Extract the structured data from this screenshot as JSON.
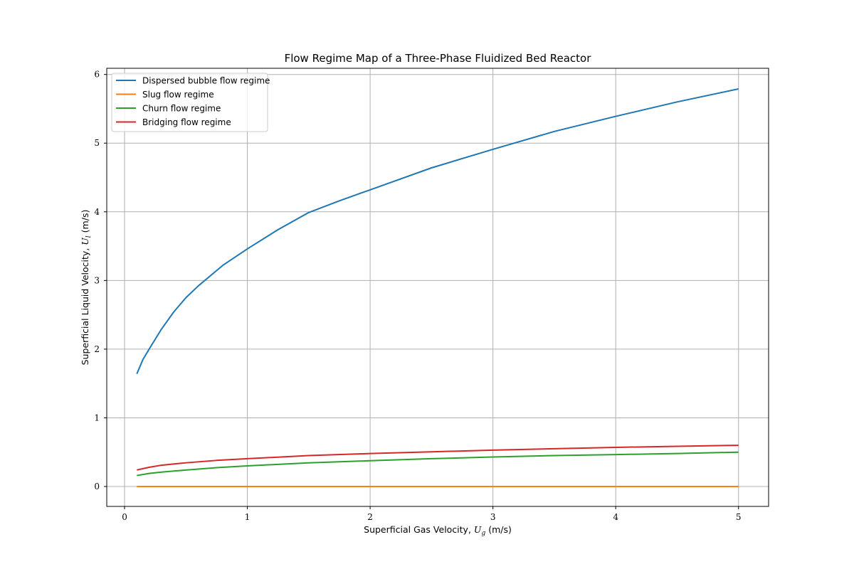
{
  "chart_data": {
    "type": "line",
    "title": "Flow Regime Map of a Three-Phase Fluidized Bed Reactor",
    "xlabel": {
      "text": "Superficial Gas Velocity, ",
      "symbol": "U",
      "subscript": "g",
      "unit": " (m/s)"
    },
    "ylabel": {
      "text": "Superficial Liquid Velocity, ",
      "symbol": "U",
      "subscript": "l",
      "unit": " (m/s)"
    },
    "xlim": [
      -0.145,
      5.245
    ],
    "ylim": [
      -0.29,
      6.09
    ],
    "xticks": [
      0,
      1,
      2,
      3,
      4,
      5
    ],
    "yticks": [
      0,
      1,
      2,
      3,
      4,
      5,
      6
    ],
    "grid": true,
    "legend_position": "top-left",
    "series": [
      {
        "name": "Dispersed bubble flow regime",
        "color": "#1f77b4",
        "x": [
          0.1,
          0.15,
          0.2,
          0.3,
          0.4,
          0.5,
          0.6,
          0.8,
          1.0,
          1.25,
          1.5,
          1.75,
          2.0,
          2.5,
          3.0,
          3.5,
          4.0,
          4.5,
          5.0
        ],
        "y": [
          1.64,
          1.85,
          2.0,
          2.29,
          2.54,
          2.75,
          2.92,
          3.22,
          3.46,
          3.74,
          3.99,
          4.16,
          4.32,
          4.64,
          4.91,
          5.17,
          5.39,
          5.6,
          5.79
        ]
      },
      {
        "name": "Slug flow regime",
        "color": "#ff7f0e",
        "x": [
          0.1,
          1.0,
          2.0,
          3.0,
          4.0,
          5.0
        ],
        "y": [
          0.0,
          0.0,
          0.0,
          0.0,
          0.0,
          0.0
        ]
      },
      {
        "name": "Churn flow regime",
        "color": "#2ca02c",
        "x": [
          0.1,
          0.2,
          0.3,
          0.5,
          0.75,
          1.0,
          1.5,
          2.0,
          2.5,
          3.0,
          3.5,
          4.0,
          4.5,
          5.0
        ],
        "y": [
          0.16,
          0.19,
          0.21,
          0.24,
          0.275,
          0.3,
          0.345,
          0.375,
          0.405,
          0.43,
          0.45,
          0.465,
          0.48,
          0.5
        ]
      },
      {
        "name": "Bridging flow regime",
        "color": "#d62728",
        "x": [
          0.1,
          0.2,
          0.3,
          0.5,
          0.75,
          1.0,
          1.5,
          2.0,
          2.5,
          3.0,
          3.5,
          4.0,
          4.5,
          5.0
        ],
        "y": [
          0.24,
          0.28,
          0.31,
          0.345,
          0.38,
          0.405,
          0.45,
          0.48,
          0.505,
          0.53,
          0.55,
          0.57,
          0.585,
          0.6
        ]
      }
    ]
  }
}
